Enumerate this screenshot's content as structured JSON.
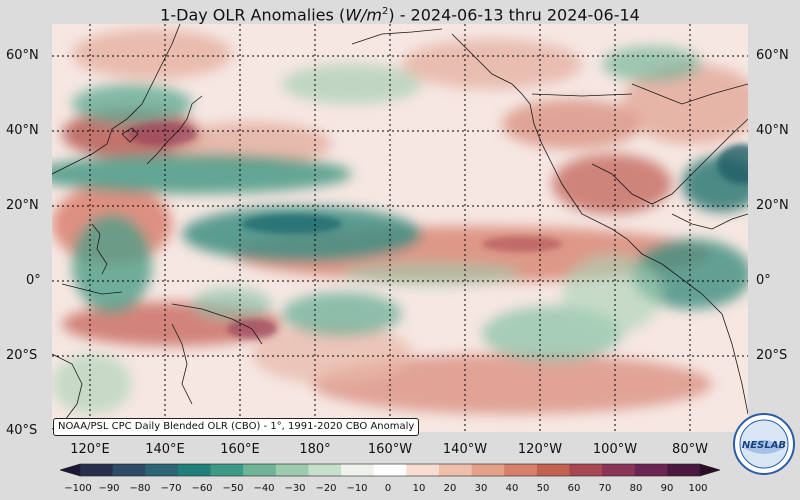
{
  "title": {
    "prefix": "1-Day OLR Anomalies (",
    "unit": "W/m",
    "unit_exp": "2",
    "suffix": ") - 2024-06-13 thru 2024-06-14"
  },
  "map": {
    "lat_labels": [
      "60°N",
      "40°N",
      "20°N",
      "0°",
      "20°S",
      "40°S"
    ],
    "lon_labels": [
      "120°E",
      "140°E",
      "160°E",
      "180°",
      "160°W",
      "140°W",
      "120°W",
      "100°W",
      "80°W"
    ],
    "caption": "NOAA/PSL CPC Daily Blended OLR (CBO) - 1°, 1991-2020 CBO Anomaly",
    "background_color": "#f6e7e2",
    "grid": "dotted"
  },
  "colorbar": {
    "ticks": [
      "−100",
      "−90",
      "−80",
      "−70",
      "−60",
      "−50",
      "−40",
      "−30",
      "−20",
      "−10",
      "0",
      "10",
      "20",
      "30",
      "40",
      "50",
      "60",
      "70",
      "80",
      "90",
      "100"
    ],
    "colors": [
      "#1a1836",
      "#26304e",
      "#2d4a68",
      "#2b6475",
      "#1e8079",
      "#3c9b86",
      "#6fb398",
      "#9ccbad",
      "#c6e0cb",
      "#eef2ea",
      "#ffffff",
      "#f7ddd2",
      "#efbfab",
      "#e5a08a",
      "#d6806c",
      "#c36152",
      "#a94751",
      "#8a3456",
      "#6b2553",
      "#4b183f",
      "#2c0d24"
    ]
  },
  "logo": {
    "text": "NESLAB",
    "name": "noaa-esrl-psl-logo"
  }
}
